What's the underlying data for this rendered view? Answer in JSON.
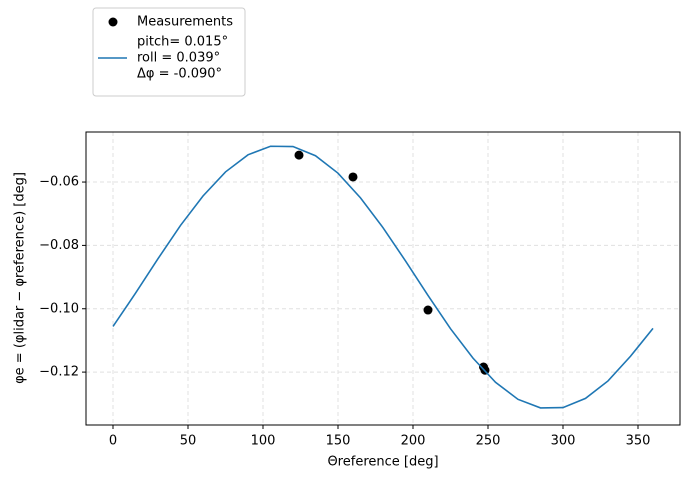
{
  "chart_data": {
    "type": "scatter-line",
    "x_label": "Θreference [deg]",
    "y_label": "φe = (φlidar − φreference) [deg]",
    "xlim": [
      -18,
      378
    ],
    "ylim": [
      -0.1367,
      -0.0442
    ],
    "xticks": [
      0,
      50,
      100,
      150,
      200,
      250,
      300,
      350
    ],
    "yticks": [
      {
        "value": -0.12,
        "label": "−0.12"
      },
      {
        "value": -0.1,
        "label": "−0.10"
      },
      {
        "value": -0.08,
        "label": "−0.08"
      },
      {
        "value": -0.06,
        "label": "−0.06"
      }
    ],
    "grid": true,
    "legend": "upper left",
    "series": [
      {
        "name": "Measurements",
        "kind": "scatter",
        "color": "#000000",
        "x": [
          124,
          160,
          210,
          247,
          248
        ],
        "values": [
          -0.0515,
          -0.0584,
          -0.1004,
          -0.1184,
          -0.1194
        ]
      },
      {
        "name": [
          "pitch= 0.015°",
          "roll = 0.039°",
          "Δφ = -0.090°"
        ],
        "kind": "line",
        "color": "#1f77b4",
        "x": [
          0,
          15,
          30,
          45,
          60,
          75,
          90,
          105,
          120,
          135,
          150,
          165,
          180,
          195,
          210,
          225,
          240,
          255,
          270,
          285,
          300,
          315,
          330,
          345,
          360
        ],
        "values": [
          -0.1056,
          -0.0951,
          -0.0842,
          -0.0737,
          -0.0644,
          -0.0568,
          -0.0514,
          -0.0487,
          -0.0488,
          -0.0517,
          -0.0572,
          -0.065,
          -0.0744,
          -0.0849,
          -0.0958,
          -0.1063,
          -0.1156,
          -0.1232,
          -0.1286,
          -0.1313,
          -0.1312,
          -0.1283,
          -0.1228,
          -0.115,
          -0.1062
        ]
      }
    ]
  }
}
